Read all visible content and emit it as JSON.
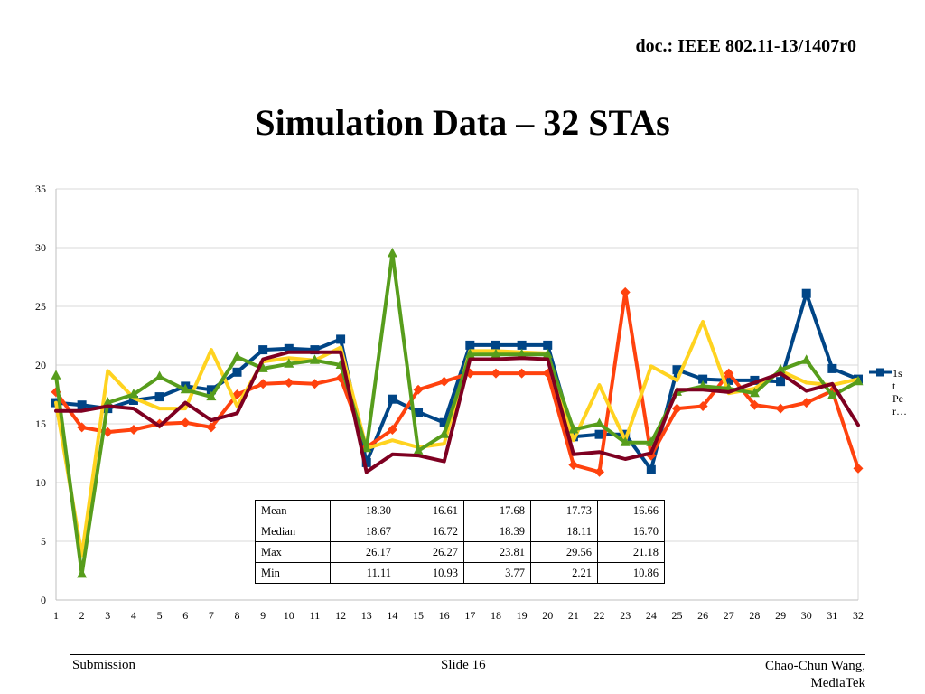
{
  "header": {
    "doc_id": "doc.: IEEE 802.11-13/1407r0",
    "title": "Simulation Data – 32 STAs"
  },
  "footer": {
    "left": "Submission",
    "center": "Slide 16",
    "right_line1": "Chao-Chun Wang,",
    "right_line2": "MediaTek"
  },
  "legend": {
    "lines": [
      "1s",
      "t",
      "Pe",
      "r…"
    ]
  },
  "stats_table": {
    "rows": [
      {
        "label": "Mean",
        "values": [
          "18.30",
          "16.61",
          "17.68",
          "17.73",
          "16.66"
        ]
      },
      {
        "label": "Median",
        "values": [
          "18.67",
          "16.72",
          "18.39",
          "18.11",
          "16.70"
        ]
      },
      {
        "label": "Max",
        "values": [
          "26.17",
          "26.27",
          "23.81",
          "29.56",
          "21.18"
        ]
      },
      {
        "label": "Min",
        "values": [
          "11.11",
          "10.93",
          "3.77",
          "2.21",
          "10.86"
        ]
      }
    ]
  },
  "chart_data": {
    "type": "line",
    "categories": [
      "1",
      "2",
      "3",
      "4",
      "5",
      "6",
      "7",
      "8",
      "9",
      "10",
      "11",
      "12",
      "13",
      "14",
      "15",
      "16",
      "17",
      "18",
      "19",
      "20",
      "21",
      "22",
      "23",
      "24",
      "25",
      "26",
      "27",
      "28",
      "29",
      "30",
      "31",
      "32"
    ],
    "ylim": [
      0,
      35
    ],
    "yticks": [
      "0",
      "5",
      "10",
      "15",
      "20",
      "25",
      "30",
      "35"
    ],
    "grid": "horizontal",
    "legend_position": "right",
    "series": [
      {
        "color": "#004586",
        "marker": "square",
        "values": [
          16.8,
          16.6,
          16.3,
          17.0,
          17.3,
          18.2,
          17.9,
          19.4,
          21.3,
          21.4,
          21.3,
          22.2,
          11.7,
          17.1,
          16.0,
          15.1,
          21.7,
          21.7,
          21.7,
          21.7,
          13.9,
          14.1,
          14.1,
          11.1,
          19.6,
          18.8,
          18.7,
          18.7,
          18.6,
          26.1,
          19.7,
          18.8
        ]
      },
      {
        "color": "#ff420e",
        "marker": "diamond",
        "values": [
          17.7,
          14.7,
          14.3,
          14.5,
          15.0,
          15.1,
          14.7,
          17.5,
          18.4,
          18.5,
          18.4,
          18.9,
          13.0,
          14.5,
          17.9,
          18.6,
          19.3,
          19.3,
          19.3,
          19.3,
          11.5,
          10.9,
          26.2,
          12.3,
          16.3,
          16.5,
          19.3,
          16.6,
          16.3,
          16.8,
          17.8,
          11.2
        ]
      },
      {
        "color": "#ffd320",
        "marker": "none",
        "values": [
          16.8,
          3.8,
          19.5,
          17.2,
          16.3,
          16.3,
          21.3,
          16.5,
          20.3,
          20.6,
          20.4,
          21.5,
          12.9,
          13.6,
          13.0,
          13.3,
          21.2,
          21.2,
          21.1,
          21.0,
          13.6,
          18.3,
          13.6,
          19.9,
          18.7,
          23.7,
          17.6,
          18.0,
          19.5,
          18.5,
          18.3,
          18.8
        ]
      },
      {
        "color": "#579d1c",
        "marker": "triangle",
        "values": [
          19.1,
          2.2,
          16.8,
          17.5,
          19.0,
          17.9,
          17.3,
          20.7,
          19.7,
          20.1,
          20.4,
          20.0,
          12.9,
          29.5,
          12.7,
          14.1,
          20.9,
          20.9,
          20.9,
          20.9,
          14.5,
          15.0,
          13.4,
          13.4,
          17.7,
          18.2,
          18.0,
          17.6,
          19.6,
          20.4,
          17.4,
          18.6
        ]
      },
      {
        "color": "#7e0021",
        "marker": "none",
        "values": [
          16.1,
          16.1,
          16.5,
          16.3,
          14.8,
          16.8,
          15.3,
          15.9,
          20.5,
          21.1,
          21.1,
          21.1,
          10.9,
          12.4,
          12.3,
          11.8,
          20.5,
          20.5,
          20.6,
          20.5,
          12.4,
          12.6,
          12.0,
          12.5,
          17.9,
          17.9,
          17.7,
          18.5,
          19.3,
          17.8,
          18.4,
          14.9
        ]
      }
    ]
  }
}
